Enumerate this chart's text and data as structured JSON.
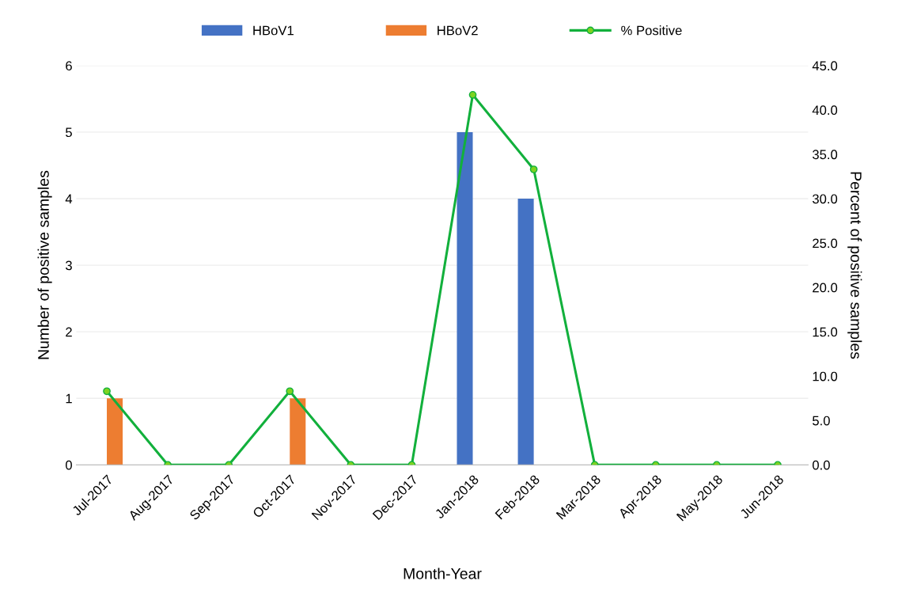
{
  "chart_data": {
    "type": "bar",
    "xlabel": "Month-Year",
    "ylabel": "Number of positive samples",
    "y2label": "Percent of positive samples",
    "categories": [
      "Jul-2017",
      "Aug-2017",
      "Sep-2017",
      "Oct-2017",
      "Nov-2017",
      "Dec-2017",
      "Jan-2018",
      "Feb-2018",
      "Mar-2018",
      "Apr-2018",
      "May-2018",
      "Jun-2018"
    ],
    "series": [
      {
        "name": "HBoV1",
        "color": "#4472c4",
        "values": [
          0,
          0,
          0,
          0,
          0,
          0,
          5,
          4,
          0,
          0,
          0,
          0
        ]
      },
      {
        "name": "HBoV2",
        "color": "#ed7d31",
        "values": [
          1,
          0,
          0,
          1,
          0,
          0,
          0,
          0,
          0,
          0,
          0,
          0
        ]
      },
      {
        "name": "% Positive",
        "type": "line",
        "axis": "y2",
        "color": "#12b03c",
        "marker": "circle",
        "values": [
          8.3,
          0,
          0,
          8.3,
          0,
          0,
          41.7,
          33.3,
          0,
          0,
          0,
          0
        ]
      }
    ],
    "ylim": [
      0,
      6
    ],
    "yticks": [
      0,
      1,
      2,
      3,
      4,
      5,
      6
    ],
    "y2lim": [
      0,
      45
    ],
    "y2ticks": [
      {
        "value": 0,
        "label": "0.0"
      },
      {
        "value": 5,
        "label": "5.0"
      },
      {
        "value": 10,
        "label": "10.0"
      },
      {
        "value": 15,
        "label": "15.0"
      },
      {
        "value": 20,
        "label": "20.0"
      },
      {
        "value": 25,
        "label": "25.0"
      },
      {
        "value": 30,
        "label": "30.0"
      },
      {
        "value": 35,
        "label": "35.0"
      },
      {
        "value": 40,
        "label": "40.0"
      },
      {
        "value": 45,
        "label": "45.0"
      }
    ],
    "grid": "y",
    "legend": "top"
  }
}
